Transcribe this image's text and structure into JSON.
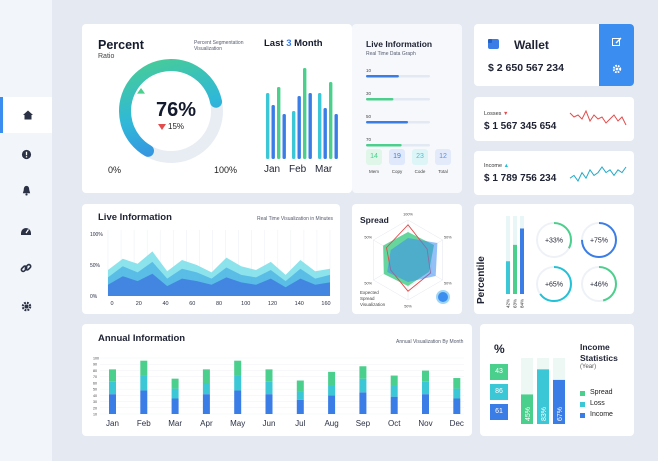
{
  "colors": {
    "blue": "#3b7de6",
    "green": "#4bcf8c",
    "teal": "#3cc7d6",
    "cyan": "#22c1d6",
    "red": "#e24c4c",
    "panel": "#f2f5fa"
  },
  "sidebar": {
    "items": [
      {
        "icon": "home-icon"
      },
      {
        "icon": "info-icon"
      },
      {
        "icon": "bell-icon"
      },
      {
        "icon": "dashboard-icon"
      },
      {
        "icon": "link-icon"
      },
      {
        "icon": "gear-icon"
      }
    ]
  },
  "percent_card": {
    "title": "Percent",
    "subtitle": "Ratio",
    "caption_l1": "Percent Segmentation",
    "caption_l2": "Visualization",
    "main_value": "76%",
    "sub_value": "15%",
    "min_label": "0%",
    "max_label": "100%",
    "gauge_fraction": 0.76
  },
  "month_card": {
    "title_pre": "Last",
    "title_num": "3",
    "title_post": "Month",
    "chart_data": {
      "type": "bar",
      "categories": [
        "Jan",
        "Feb",
        "Mar"
      ],
      "series": [
        {
          "values": [
            66,
            48,
            66
          ]
        },
        {
          "values": [
            54,
            63,
            51
          ]
        },
        {
          "values": [
            72,
            91,
            77
          ]
        },
        {
          "values": [
            45,
            66,
            45
          ]
        }
      ],
      "ylim": [
        0,
        100
      ]
    }
  },
  "live_info_top": {
    "title": "Live Information",
    "subtitle": "Real Time Data Graph",
    "chart_data": {
      "type": "bar",
      "categories": [
        "10",
        "30",
        "50",
        "70"
      ],
      "values": [
        36,
        30,
        46,
        39
      ],
      "xlim": [
        0,
        70
      ]
    },
    "tiles": [
      {
        "value": "14",
        "label": "Mem"
      },
      {
        "value": "19",
        "label": "Copy"
      },
      {
        "value": "23",
        "label": "Code"
      },
      {
        "value": "12",
        "label": "Total"
      }
    ]
  },
  "wallet": {
    "title": "Wallet",
    "amount": "$ 2 650 567 234"
  },
  "losses": {
    "label": "Losses",
    "amount": "$ 1 567 345 654",
    "chart_data": {
      "type": "line",
      "values": [
        7,
        5,
        6,
        4,
        8,
        3,
        6,
        4,
        5,
        2,
        4,
        6,
        3,
        5,
        1
      ]
    }
  },
  "income_top": {
    "label": "Income",
    "amount": "$ 1 789 756 234",
    "chart_data": {
      "type": "line",
      "values": [
        3,
        4,
        2,
        5,
        3,
        6,
        4,
        5,
        7,
        5,
        6,
        4,
        6,
        5,
        7
      ]
    }
  },
  "live_info_mid": {
    "title": "Live Information",
    "caption": "Real Time Visualization in Minutes",
    "chart_data": {
      "type": "area",
      "x_ticks": [
        "0",
        "20",
        "40",
        "60",
        "80",
        "100",
        "120",
        "140",
        "160"
      ],
      "y_ticks": [
        "100%",
        "50%",
        "0%"
      ],
      "xlim": [
        0,
        160
      ],
      "ylim": [
        0,
        100
      ],
      "series": [
        {
          "values": [
            42,
            60,
            52,
            72,
            40,
            58,
            50,
            38,
            62,
            48,
            42,
            55,
            34,
            58,
            40,
            44
          ]
        },
        {
          "values": [
            30,
            48,
            38,
            55,
            28,
            44,
            38,
            28,
            46,
            34,
            30,
            42,
            24,
            44,
            28,
            34
          ]
        },
        {
          "values": [
            18,
            32,
            24,
            36,
            16,
            28,
            24,
            18,
            30,
            22,
            18,
            28,
            14,
            28,
            18,
            22
          ]
        }
      ]
    }
  },
  "spread": {
    "title": "Spread",
    "caption_l1": "Expected",
    "caption_l2": "Spread",
    "caption_l3": "Visualization",
    "ticks": [
      "100%",
      "50%",
      "50%",
      "50%",
      "50%",
      "50%"
    ],
    "chart_data": {
      "type": "radar",
      "axes": 6,
      "max": 100,
      "series": [
        {
          "values": [
            70,
            75,
            60,
            65,
            70,
            72
          ]
        },
        {
          "values": [
            88,
            55,
            65,
            78,
            50,
            62
          ]
        },
        {
          "values": [
            55,
            85,
            80,
            55,
            60,
            50
          ]
        }
      ]
    }
  },
  "percentile": {
    "title": "Percentile",
    "chart_data": {
      "type": "bar",
      "categories": [
        "42%",
        "63%",
        "84%"
      ],
      "values": [
        42,
        63,
        84
      ],
      "ylim": [
        0,
        100
      ]
    },
    "donuts": [
      {
        "value": "+33%",
        "fraction": 0.33
      },
      {
        "value": "+75%",
        "fraction": 0.75
      },
      {
        "value": "+65%",
        "fraction": 0.65
      },
      {
        "value": "+46%",
        "fraction": 0.46
      }
    ]
  },
  "annual": {
    "title": "Annual Information",
    "caption": "Annual Visualization By Month",
    "chart_data": {
      "type": "bar",
      "stacked": true,
      "categories": [
        "Jan",
        "Feb",
        "Mar",
        "Apr",
        "May",
        "Jun",
        "Jul",
        "Aug",
        "Sep",
        "Oct",
        "Nov",
        "Dec"
      ],
      "y_ticks": [
        "100",
        "90",
        "80",
        "70",
        "60",
        "50",
        "40",
        "30",
        "20",
        "10"
      ],
      "ylim": [
        0,
        100
      ],
      "series": [
        {
          "values": [
            32,
            38,
            25,
            32,
            38,
            32,
            23,
            30,
            35,
            28,
            32,
            25
          ]
        },
        {
          "values": [
            20,
            24,
            16,
            18,
            24,
            20,
            14,
            16,
            22,
            18,
            20,
            16
          ]
        },
        {
          "values": [
            20,
            24,
            16,
            22,
            24,
            20,
            17,
            22,
            20,
            16,
            18,
            17
          ]
        }
      ]
    }
  },
  "income_stats": {
    "percent_symbol": "%",
    "tiles": [
      {
        "value": "43"
      },
      {
        "value": "86"
      },
      {
        "value": "61"
      }
    ],
    "bars": [
      {
        "label": "45%",
        "value": 45
      },
      {
        "label": "83%",
        "value": 83
      },
      {
        "label": "67%",
        "value": 67
      }
    ],
    "title_l1": "Income",
    "title_l2": "Statistics",
    "title_l3": "(Year)",
    "legend": [
      "Spread",
      "Loss",
      "Income"
    ]
  }
}
